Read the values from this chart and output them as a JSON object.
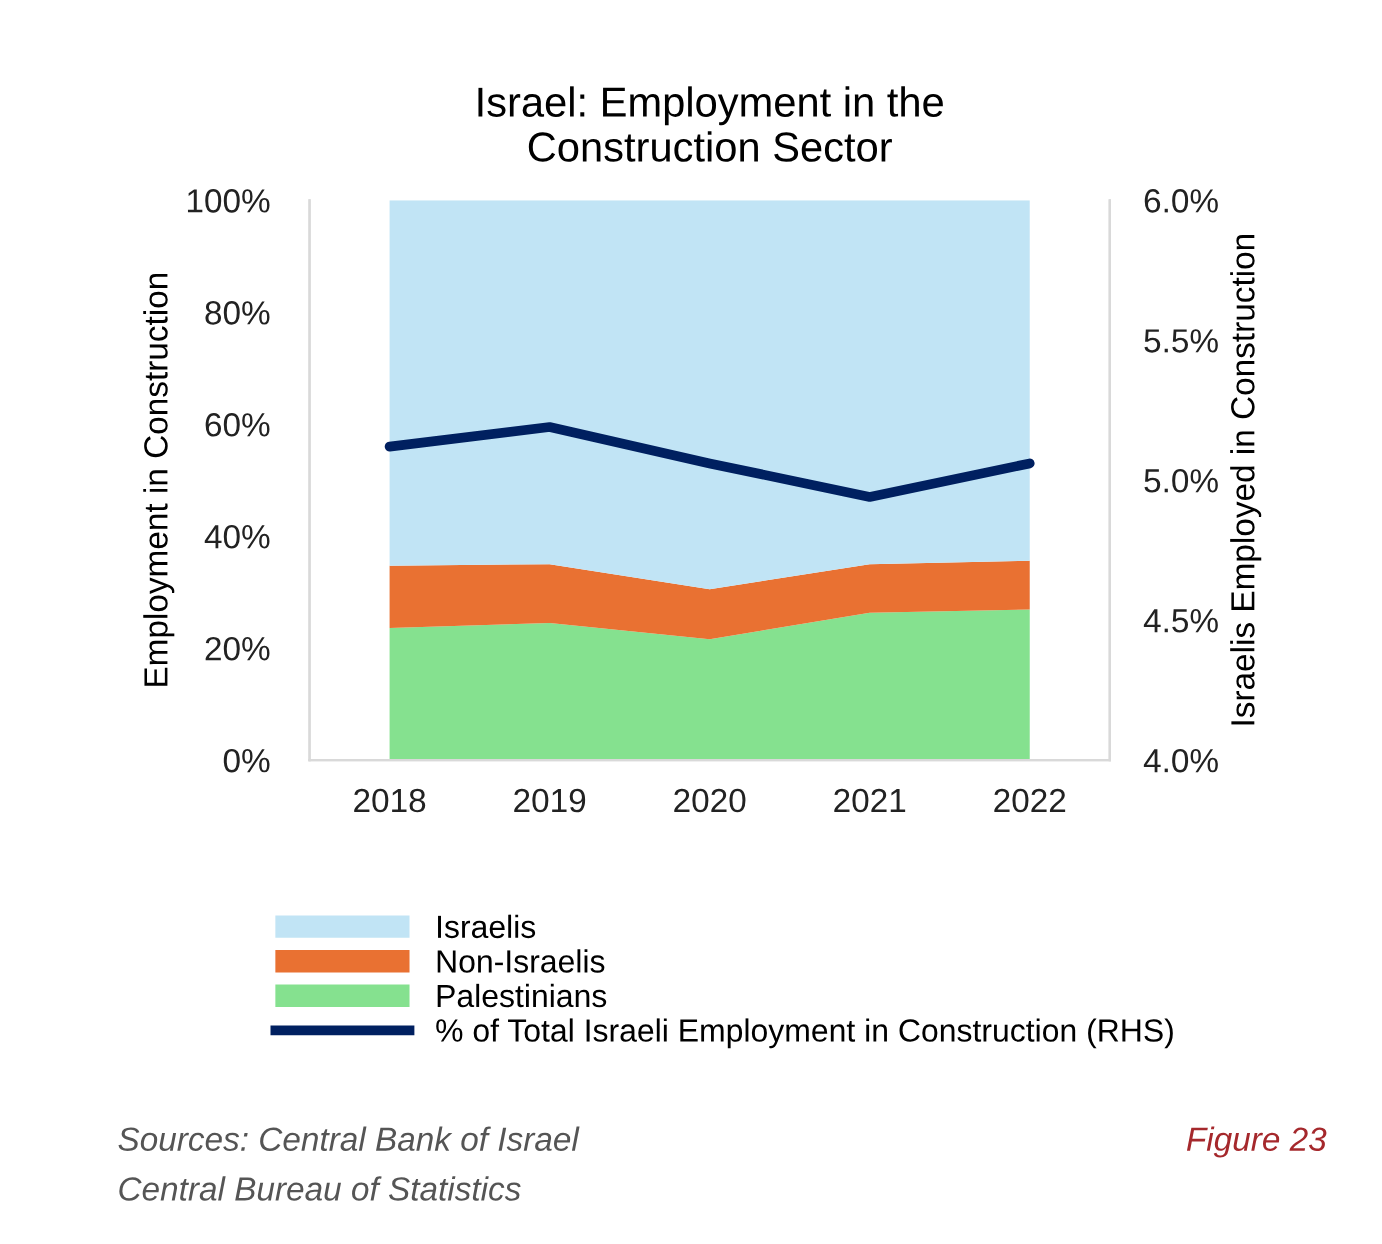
{
  "chart_data": {
    "type": "area",
    "stacked": true,
    "title": "Israel: Employment in the\nConstruction Sector",
    "categories": [
      "2018",
      "2019",
      "2020",
      "2021",
      "2022"
    ],
    "series": [
      {
        "name": "Palestinians",
        "color": "#85e18f",
        "values": [
          23.6,
          24.5,
          21.6,
          26.3,
          26.9
        ]
      },
      {
        "name": "Non-Israelis",
        "color": "#e97132",
        "values": [
          11.1,
          10.5,
          8.9,
          8.7,
          8.7
        ]
      },
      {
        "name": "Israelis",
        "color": "#c1e4f5",
        "values": [
          65.3,
          65.0,
          69.5,
          65.0,
          64.4
        ]
      },
      {
        "name": "% of Total Israeli Employment in Construction (RHS)",
        "type": "line",
        "axis": "y2",
        "color": "#002060",
        "values": [
          5.12,
          5.19,
          5.06,
          4.94,
          5.06
        ]
      }
    ],
    "ylabel": "Employment in Construction",
    "y2label": "Israelis Employed in Construction",
    "ylim": [
      0,
      100
    ],
    "yticks": [
      {
        "value": 0,
        "label": "0%"
      },
      {
        "value": 20,
        "label": "20%"
      },
      {
        "value": 40,
        "label": "40%"
      },
      {
        "value": 60,
        "label": "60%"
      },
      {
        "value": 80,
        "label": "80%"
      },
      {
        "value": 100,
        "label": "100%"
      }
    ],
    "y2lim": [
      4.0,
      6.0
    ],
    "y2ticks": [
      {
        "value": 4.0,
        "label": "4.0%"
      },
      {
        "value": 4.5,
        "label": "4.5%"
      },
      {
        "value": 5.0,
        "label": "5.0%"
      },
      {
        "value": 5.5,
        "label": "5.5%"
      },
      {
        "value": 6.0,
        "label": "6.0%"
      }
    ],
    "grid": false,
    "legend": "bottom",
    "line_style": "solid",
    "marker": "none",
    "annotations": [
      "Sources: Central Bank of Israel",
      "Central Bureau of Statistics",
      "Figure 23"
    ]
  }
}
